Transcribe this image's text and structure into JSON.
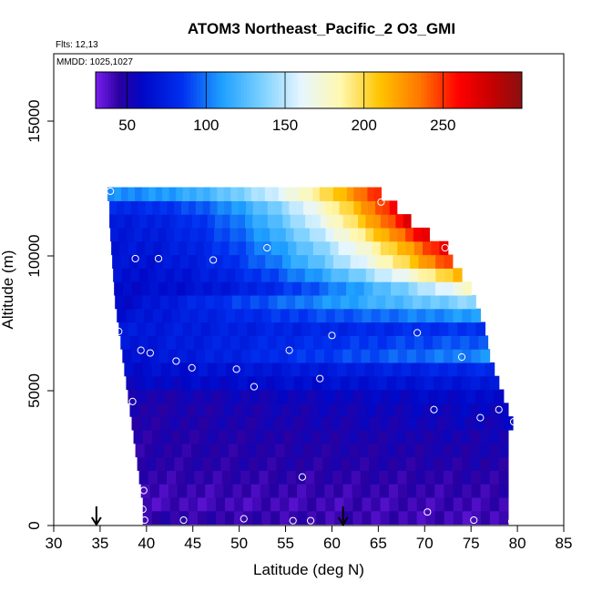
{
  "chart_data": {
    "type": "heatmap",
    "title": "ATOM3 Northeast_Pacific_2 O3_GMI",
    "annotations": [
      "Flts: 12,13",
      "MMDD: 1025,1027"
    ],
    "xlabel": "Latitude (deg N)",
    "ylabel": "Altitude (m)",
    "xlim": [
      30,
      85
    ],
    "ylim": [
      0,
      17500
    ],
    "x_ticks": [
      30,
      35,
      40,
      45,
      50,
      55,
      60,
      65,
      70,
      75,
      80,
      85
    ],
    "y_ticks": [
      0,
      5000,
      10000,
      15000
    ],
    "grid": false,
    "colorbar": {
      "placement": "top-inside",
      "range": [
        30,
        300
      ],
      "ticks": [
        50,
        100,
        150,
        200,
        250
      ],
      "stops": [
        {
          "v": 30,
          "c": "#7a1ff0"
        },
        {
          "v": 45,
          "c": "#2a00a0"
        },
        {
          "v": 60,
          "c": "#0008c8"
        },
        {
          "v": 85,
          "c": "#0030f0"
        },
        {
          "v": 110,
          "c": "#1ea0ff"
        },
        {
          "v": 135,
          "c": "#7ad0ff"
        },
        {
          "v": 160,
          "c": "#e6f6ff"
        },
        {
          "v": 185,
          "c": "#fff8b0"
        },
        {
          "v": 210,
          "c": "#ffc400"
        },
        {
          "v": 235,
          "c": "#ff7800"
        },
        {
          "v": 260,
          "c": "#ff0000"
        },
        {
          "v": 280,
          "c": "#c80000"
        },
        {
          "v": 300,
          "c": "#8a1010"
        }
      ]
    },
    "rows": [
      {
        "alt": 300,
        "lat_min": 39.6,
        "lat_max": 79,
        "v_left": 45,
        "v_right": 40
      },
      {
        "alt": 800,
        "lat_min": 39.6,
        "lat_max": 79,
        "v_left": 40,
        "v_right": 42
      },
      {
        "alt": 1300,
        "lat_min": 39.4,
        "lat_max": 79,
        "v_left": 42,
        "v_right": 44
      },
      {
        "alt": 1800,
        "lat_min": 39.2,
        "lat_max": 79,
        "v_left": 44,
        "v_right": 46
      },
      {
        "alt": 2300,
        "lat_min": 39.0,
        "lat_max": 79,
        "v_left": 46,
        "v_right": 48
      },
      {
        "alt": 2800,
        "lat_min": 38.8,
        "lat_max": 79,
        "v_left": 46,
        "v_right": 50
      },
      {
        "alt": 3300,
        "lat_min": 38.6,
        "lat_max": 79,
        "v_left": 47,
        "v_right": 52
      },
      {
        "alt": 3800,
        "lat_min": 38.4,
        "lat_max": 79.5,
        "v_left": 48,
        "v_right": 55
      },
      {
        "alt": 4300,
        "lat_min": 38.2,
        "lat_max": 79.0,
        "v_left": 48,
        "v_right": 58
      },
      {
        "alt": 4800,
        "lat_min": 38.0,
        "lat_max": 78.5,
        "v_left": 50,
        "v_right": 62
      },
      {
        "alt": 5300,
        "lat_min": 37.8,
        "lat_max": 78.0,
        "v_left": 58,
        "v_right": 70
      },
      {
        "alt": 5800,
        "lat_min": 37.6,
        "lat_max": 77.5,
        "v_left": 62,
        "v_right": 80
      },
      {
        "alt": 6300,
        "lat_min": 37.4,
        "lat_max": 77.0,
        "v_left": 65,
        "v_right": 105
      },
      {
        "alt": 6800,
        "lat_min": 37.2,
        "lat_max": 76.8,
        "v_left": 68,
        "v_right": 95
      },
      {
        "alt": 7300,
        "lat_min": 37.0,
        "lat_max": 76.5,
        "v_left": 70,
        "v_right": 85
      },
      {
        "alt": 7800,
        "lat_min": 36.8,
        "lat_max": 76.0,
        "v_left": 65,
        "v_right": 110
      },
      {
        "alt": 8300,
        "lat_min": 36.6,
        "lat_max": 75.5,
        "v_left": 60,
        "v_right": 140
      },
      {
        "alt": 8800,
        "lat_min": 36.5,
        "lat_max": 75.0,
        "v_left": 62,
        "v_right": 175
      },
      {
        "alt": 9300,
        "lat_min": 36.4,
        "lat_max": 74.0,
        "v_left": 64,
        "v_right": 215
      },
      {
        "alt": 9800,
        "lat_min": 36.3,
        "lat_max": 73.0,
        "v_left": 66,
        "v_right": 250
      },
      {
        "alt": 10300,
        "lat_min": 36.2,
        "lat_max": 72.5,
        "v_left": 68,
        "v_right": 265
      },
      {
        "alt": 10800,
        "lat_min": 36.1,
        "lat_max": 70.5,
        "v_left": 70,
        "v_right": 270
      },
      {
        "alt": 11300,
        "lat_min": 36.0,
        "lat_max": 68.5,
        "v_left": 72,
        "v_right": 268
      },
      {
        "alt": 11800,
        "lat_min": 36.0,
        "lat_max": 67.0,
        "v_left": 80,
        "v_right": 262
      },
      {
        "alt": 12300,
        "lat_min": 35.8,
        "lat_max": 65.3,
        "v_left": 105,
        "v_right": 255
      }
    ],
    "flight_points": [
      [
        36.1,
        12400
      ],
      [
        65.3,
        12000
      ],
      [
        72.2,
        10300
      ],
      [
        53.0,
        10300
      ],
      [
        38.8,
        9900
      ],
      [
        41.3,
        9900
      ],
      [
        47.2,
        9850
      ],
      [
        37.0,
        7200
      ],
      [
        60.0,
        7050
      ],
      [
        69.2,
        7150
      ],
      [
        77.0,
        7450
      ],
      [
        39.4,
        6500
      ],
      [
        40.4,
        6400
      ],
      [
        43.2,
        6100
      ],
      [
        55.4,
        6500
      ],
      [
        74.0,
        6250
      ],
      [
        44.9,
        5850
      ],
      [
        49.7,
        5800
      ],
      [
        51.6,
        5150
      ],
      [
        58.7,
        5450
      ],
      [
        38.5,
        4600
      ],
      [
        71.0,
        4300
      ],
      [
        78.0,
        4300
      ],
      [
        76.0,
        4000
      ],
      [
        79.6,
        3850
      ],
      [
        56.8,
        1800
      ],
      [
        39.7,
        1300
      ],
      [
        39.6,
        600
      ],
      [
        70.3,
        500
      ],
      [
        39.8,
        200
      ],
      [
        44.0,
        200
      ],
      [
        50.5,
        250
      ],
      [
        55.8,
        180
      ],
      [
        57.7,
        180
      ],
      [
        75.3,
        200
      ],
      [
        79.4,
        150
      ]
    ],
    "arrows": [
      34.6,
      61.2
    ]
  }
}
